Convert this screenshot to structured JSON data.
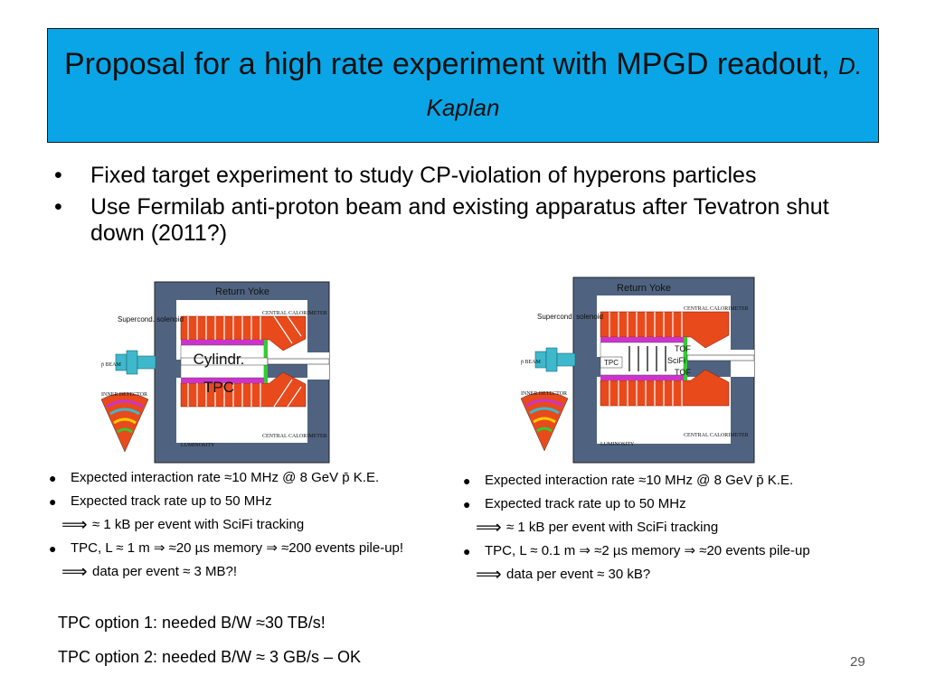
{
  "title": {
    "main": "Proposal for a high rate experiment with MPGD readout,",
    "author": "D. Kaplan"
  },
  "bullets": [
    "Fixed target experiment to study CP-violation of hyperons particles",
    "Use Fermilab anti-proton beam and existing apparatus after Tevatron shut down (2011?)"
  ],
  "figure_left": {
    "return_yoke": "Return Yoke",
    "solenoid": "Supercond. solenoid",
    "central_calorimeter": "CENTRAL CALORIMETER",
    "inner_detector": "INNER DETECTOR",
    "luminosity": "LUMINOSITY",
    "beam": "p̄ BEAM",
    "tpc_line1": "Cylindr.",
    "tpc_line2": "TPC"
  },
  "figure_right": {
    "return_yoke": "Return Yoke",
    "solenoid": "Supercond. solenoid",
    "central_calorimeter": "CENTRAL CALORIMETER",
    "inner_detector": "INNER DETECTOR",
    "luminosity": "LUMINOSITY",
    "beam": "p̄ BEAM",
    "tpc": "TPC",
    "tof1": "TOF",
    "scifi": "SciFi",
    "tof2": "TOF"
  },
  "left_list": {
    "item1": "Expected interaction rate ≈10 MHz @ 8 GeV p̄ K.E.",
    "item2": "Expected track rate up to 50 MHz",
    "item3": "≈ 1 kB per event with SciFi tracking",
    "item4": "TPC, L ≈ 1 m ⇒ ≈20 µs memory ⇒ ≈200 events pile-up!",
    "item5": "data per event ≈ 3 MB?!"
  },
  "right_list": {
    "item1": "Expected interaction rate ≈10 MHz @ 8 GeV p̄ K.E.",
    "item2": "Expected track rate up to 50 MHz",
    "item3": "≈ 1 kB per event with SciFi tracking",
    "item4": "TPC, L ≈ 0.1 m ⇒ ≈2 µs memory ⇒ ≈20 events pile-up",
    "item5": "data per event ≈ 30 kB?"
  },
  "bullet_symbol": "●",
  "implies_symbol": "⟹",
  "options": {
    "opt1": "TPC option 1: needed B/W ≈30 TB/s!",
    "opt2": "TPC option 2: needed B/W ≈ 3 GB/s – OK"
  },
  "slide_number": "29",
  "colors": {
    "title_bg": "#0aa5e6",
    "yoke": "#4f6381",
    "calorimeter": "#e84a1c",
    "tpc_green": "#33cc33",
    "magenta": "#cc33cc"
  }
}
